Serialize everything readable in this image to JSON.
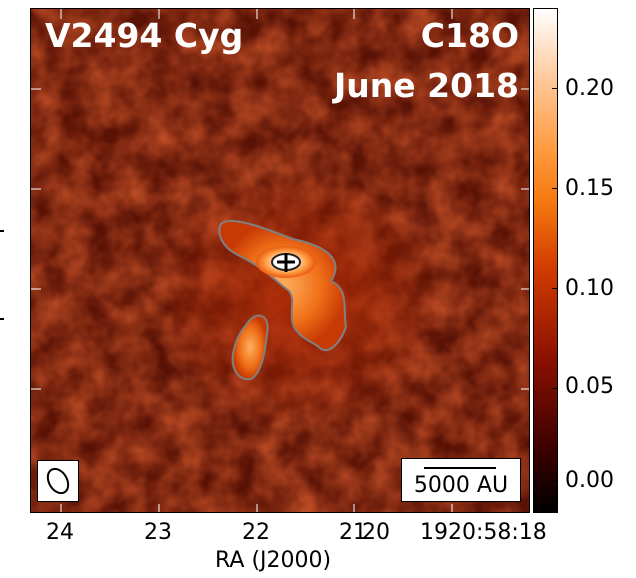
{
  "map": {
    "source": "V2494 Cyg",
    "line": "C18O",
    "date": "June 2018",
    "scale_label": "5000 AU"
  },
  "x_axis": {
    "label": "RA (J2000)",
    "ticks": [
      "24",
      "23",
      "22",
      "21",
      "20",
      "1920:58:18"
    ]
  },
  "colorbar": {
    "ticks": [
      "0.20",
      "0.15",
      "0.10",
      "0.05",
      "0.00"
    ],
    "colors": [
      "#000000",
      "#3a0000",
      "#8a1000",
      "#d03a00",
      "#f57a10",
      "#ff9a40",
      "#ffc89a",
      "#ffffff"
    ]
  },
  "icons": {
    "beam": "beam-ellipse-icon",
    "source_marker": "plus-marker-icon"
  }
}
